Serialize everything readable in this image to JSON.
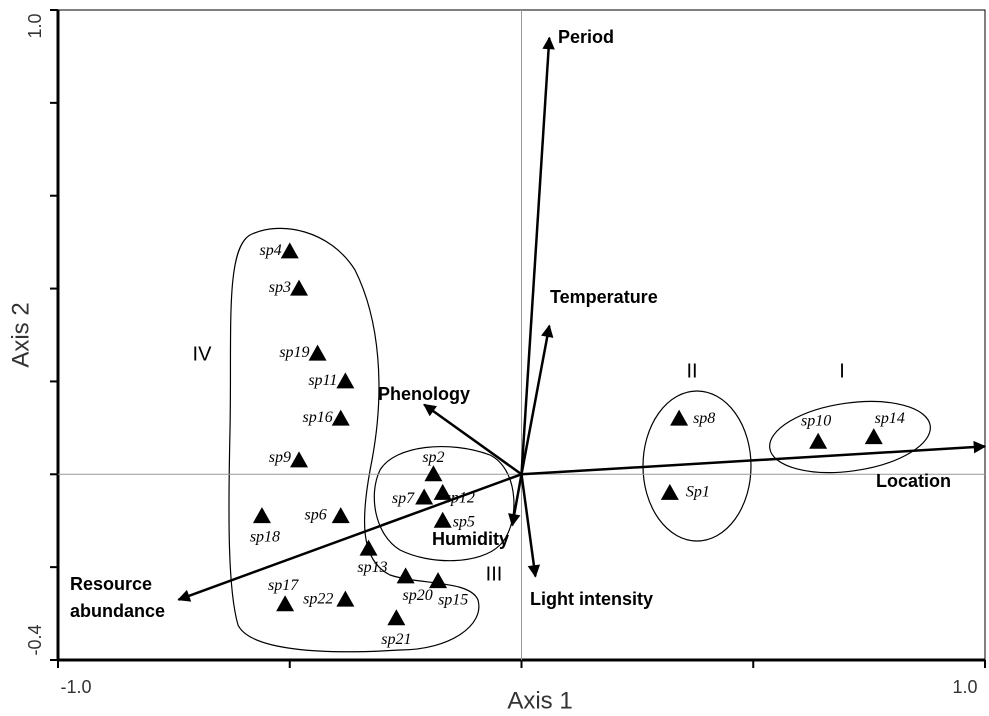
{
  "chart_data": {
    "type": "scatter",
    "xlabel": "Axis 1",
    "ylabel": "Axis 2",
    "xlim": [
      -1,
      1
    ],
    "ylim": [
      -0.4,
      1
    ],
    "xticks": [
      {
        "value": -1,
        "label": "-1.0"
      },
      {
        "value": 1,
        "label": "1.0"
      }
    ],
    "yticks": [
      {
        "value": -0.4,
        "label": "-0.4"
      },
      {
        "value": 1,
        "label": "1.0"
      }
    ],
    "xminor_ticks": [
      -0.5,
      0,
      0.5
    ],
    "yminor_ticks": [
      -0.2,
      0,
      0.2,
      0.4,
      0.6,
      0.8
    ],
    "color": "#000000",
    "points": [
      {
        "label": "sp4",
        "x": -0.5,
        "y": 0.48
      },
      {
        "label": "sp3",
        "x": -0.48,
        "y": 0.4
      },
      {
        "label": "sp19",
        "x": -0.44,
        "y": 0.26
      },
      {
        "label": "sp11",
        "x": -0.38,
        "y": 0.2
      },
      {
        "label": "sp16",
        "x": -0.39,
        "y": 0.12
      },
      {
        "label": "sp9",
        "x": -0.48,
        "y": 0.03
      },
      {
        "label": "sp18",
        "x": -0.56,
        "y": -0.09
      },
      {
        "label": "sp6",
        "x": -0.39,
        "y": -0.09
      },
      {
        "label": "sp13",
        "x": -0.33,
        "y": -0.16
      },
      {
        "label": "sp17",
        "x": -0.51,
        "y": -0.28
      },
      {
        "label": "sp22",
        "x": -0.38,
        "y": -0.27
      },
      {
        "label": "sp20",
        "x": -0.25,
        "y": -0.22
      },
      {
        "label": "sp15",
        "x": -0.18,
        "y": -0.23
      },
      {
        "label": "sp21",
        "x": -0.27,
        "y": -0.31
      },
      {
        "label": "sp2",
        "x": -0.19,
        "y": 0.0
      },
      {
        "label": "sp12",
        "x": -0.17,
        "y": -0.04
      },
      {
        "label": "sp7",
        "x": -0.21,
        "y": -0.05
      },
      {
        "label": "sp5",
        "x": -0.17,
        "y": -0.1
      },
      {
        "label": "sp8",
        "x": 0.34,
        "y": 0.12
      },
      {
        "label": "Sp1",
        "x": 0.32,
        "y": -0.04
      },
      {
        "label": "sp10",
        "x": 0.64,
        "y": 0.07
      },
      {
        "label": "sp14",
        "x": 0.76,
        "y": 0.08
      }
    ],
    "vectors": [
      {
        "name": "Period",
        "x": 0.06,
        "y": 0.94
      },
      {
        "name": "Temperature",
        "x": 0.06,
        "y": 0.32
      },
      {
        "name": "Phenology",
        "x": -0.21,
        "y": 0.15
      },
      {
        "name": "Humidity",
        "x": -0.02,
        "y": -0.11
      },
      {
        "name": "Light intensity",
        "x": 0.03,
        "y": -0.22
      },
      {
        "name": "Resource abundance",
        "x": -0.74,
        "y": -0.27
      },
      {
        "name": "Location",
        "x": 1.0,
        "y": 0.06
      }
    ],
    "groups": [
      "IV",
      "III",
      "II",
      "I"
    ]
  }
}
